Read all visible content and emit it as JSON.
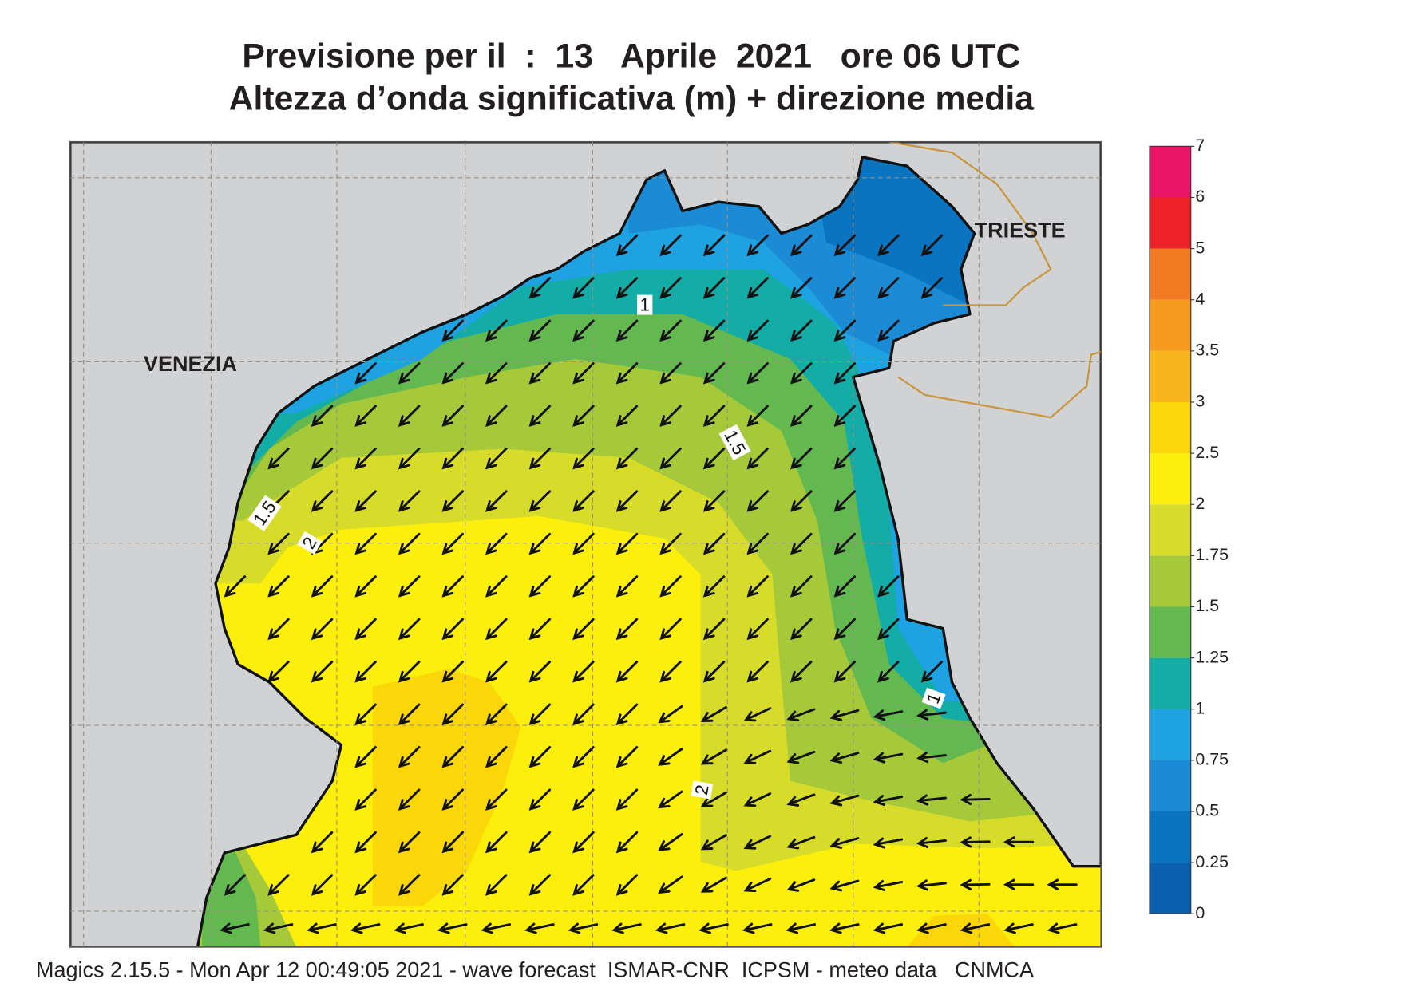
{
  "title": [
    "Previsione per il  :  13   Aprile  2021   ore 06 UTC",
    "Altezza d’onda significativa (m) + direzione media"
  ],
  "places": [
    "VENEZIA",
    "TRIESTE"
  ],
  "contour_labels": [
    1,
    1.5,
    1.5,
    2,
    2,
    1
  ],
  "colorbar": {
    "ticks": [
      0,
      0.25,
      0.5,
      0.75,
      1,
      1.25,
      1.5,
      1.75,
      2,
      2.5,
      3,
      3.5,
      4,
      5,
      6,
      7
    ],
    "colors": [
      "#0a5fae",
      "#0b74c1",
      "#1a8bd4",
      "#1ea2e2",
      "#13aca6",
      "#63b84f",
      "#a6c93a",
      "#d7dc2a",
      "#fcef0c",
      "#fbd70a",
      "#f8b51c",
      "#f59a1e",
      "#f27a22",
      "#ec2228",
      "#ea1469"
    ]
  },
  "footer": "Magics 2.15.5 - Mon Apr 12 00:49:05 2021 - wave forecast  ISMAR-CNR  ICPSM - meteo data   CNMCA"
}
